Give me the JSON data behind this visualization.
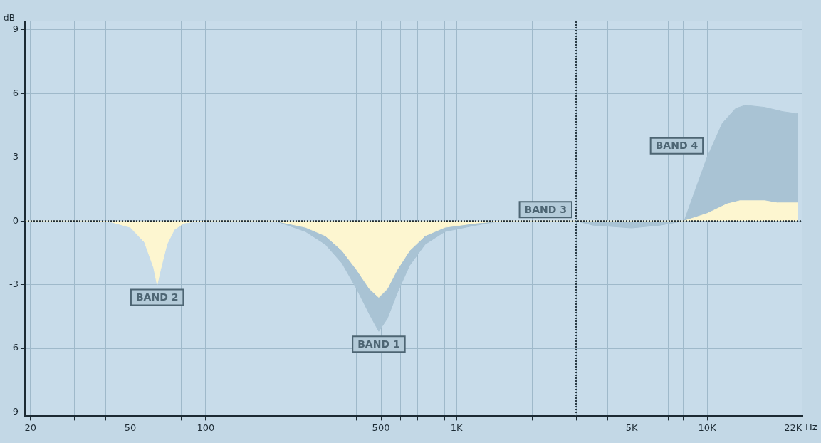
{
  "chart_data": {
    "type": "area",
    "xlabel": "Hz",
    "ylabel": "dB",
    "xlim": [
      19,
      24000
    ],
    "ylim": [
      -9.2,
      9.4
    ],
    "xticks": [
      20,
      {
        "value": 30,
        "label": null
      },
      {
        "value": 40,
        "label": null
      },
      50,
      {
        "value": 60,
        "label": null
      },
      {
        "value": 70,
        "label": null
      },
      {
        "value": 80,
        "label": null
      },
      {
        "value": 90,
        "label": null
      },
      100,
      {
        "value": 200,
        "label": null
      },
      {
        "value": 300,
        "label": null
      },
      {
        "value": 400,
        "label": null
      },
      500,
      {
        "value": 600,
        "label": null
      },
      {
        "value": 700,
        "label": null
      },
      {
        "value": 800,
        "label": null
      },
      {
        "value": 900,
        "label": null
      },
      {
        "value": 1000,
        "label": "1K"
      },
      {
        "value": 2000,
        "label": null
      },
      {
        "value": 3000,
        "label": null
      },
      {
        "value": 4000,
        "label": null
      },
      {
        "value": 5000,
        "label": "5K"
      },
      {
        "value": 6000,
        "label": null
      },
      {
        "value": 7000,
        "label": null
      },
      {
        "value": 8000,
        "label": null
      },
      {
        "value": 9000,
        "label": null
      },
      {
        "value": 10000,
        "label": "10K"
      },
      {
        "value": 20000,
        "label": null
      },
      {
        "value": 22000,
        "label": "22K"
      }
    ],
    "yticks": [
      -9,
      -6,
      -3,
      0,
      3,
      6,
      9
    ],
    "log": "x",
    "grid": true,
    "legend": false,
    "series": [
      {
        "color": "#a9c3d4",
        "x": [
          19,
          190,
          250,
          300,
          350,
          400,
          450,
          490,
          530,
          580,
          650,
          750,
          900,
          1200,
          1500,
          3000,
          3500,
          5000,
          6500,
          8100,
          9000,
          10000,
          11500,
          13000,
          14200,
          17000,
          20000,
          23000
        ],
        "values": [
          0,
          0,
          -0.5,
          -1.1,
          -2.0,
          -3.2,
          -4.4,
          -5.2,
          -4.6,
          -3.4,
          -2.1,
          -1.1,
          -0.5,
          -0.2,
          0,
          0,
          -0.2,
          -0.33,
          -0.2,
          0,
          1.5,
          3.0,
          4.6,
          5.3,
          5.45,
          5.35,
          5.15,
          5.05
        ]
      },
      {
        "color": "#fdf6d0",
        "x": [
          19,
          35,
          42,
          50,
          57,
          62,
          64,
          66,
          70,
          75,
          82,
          92,
          105,
          190,
          250,
          300,
          350,
          400,
          450,
          490,
          530,
          580,
          650,
          750,
          900,
          1200,
          1500,
          8100,
          10000,
          12000,
          13500,
          17000,
          19000,
          23000
        ],
        "values": [
          0,
          0,
          -0.05,
          -0.3,
          -1.0,
          -2.2,
          -3.0,
          -2.3,
          -1.1,
          -0.4,
          -0.1,
          -0.02,
          0,
          0,
          -0.3,
          -0.7,
          -1.4,
          -2.3,
          -3.2,
          -3.6,
          -3.2,
          -2.3,
          -1.4,
          -0.7,
          -0.3,
          -0.1,
          0,
          0,
          0.35,
          0.8,
          0.95,
          0.95,
          0.85,
          0.85
        ]
      }
    ],
    "ref_lines": [
      {
        "axis": "y",
        "value": 0,
        "color": "#1e2a30",
        "line_style": "dotted"
      },
      {
        "axis": "x",
        "value": 3000,
        "color": "#2a3a44",
        "line_style": "dotted"
      }
    ],
    "annotations": [
      {
        "text": "BAND 2",
        "x": 64,
        "y": -3.0
      },
      {
        "text": "BAND 1",
        "x": 490,
        "y": -5.2
      },
      {
        "text": "BAND 3",
        "x": 3000,
        "y": 0
      },
      {
        "text": "BAND 4",
        "x": 10000,
        "y": 3.0
      }
    ]
  }
}
